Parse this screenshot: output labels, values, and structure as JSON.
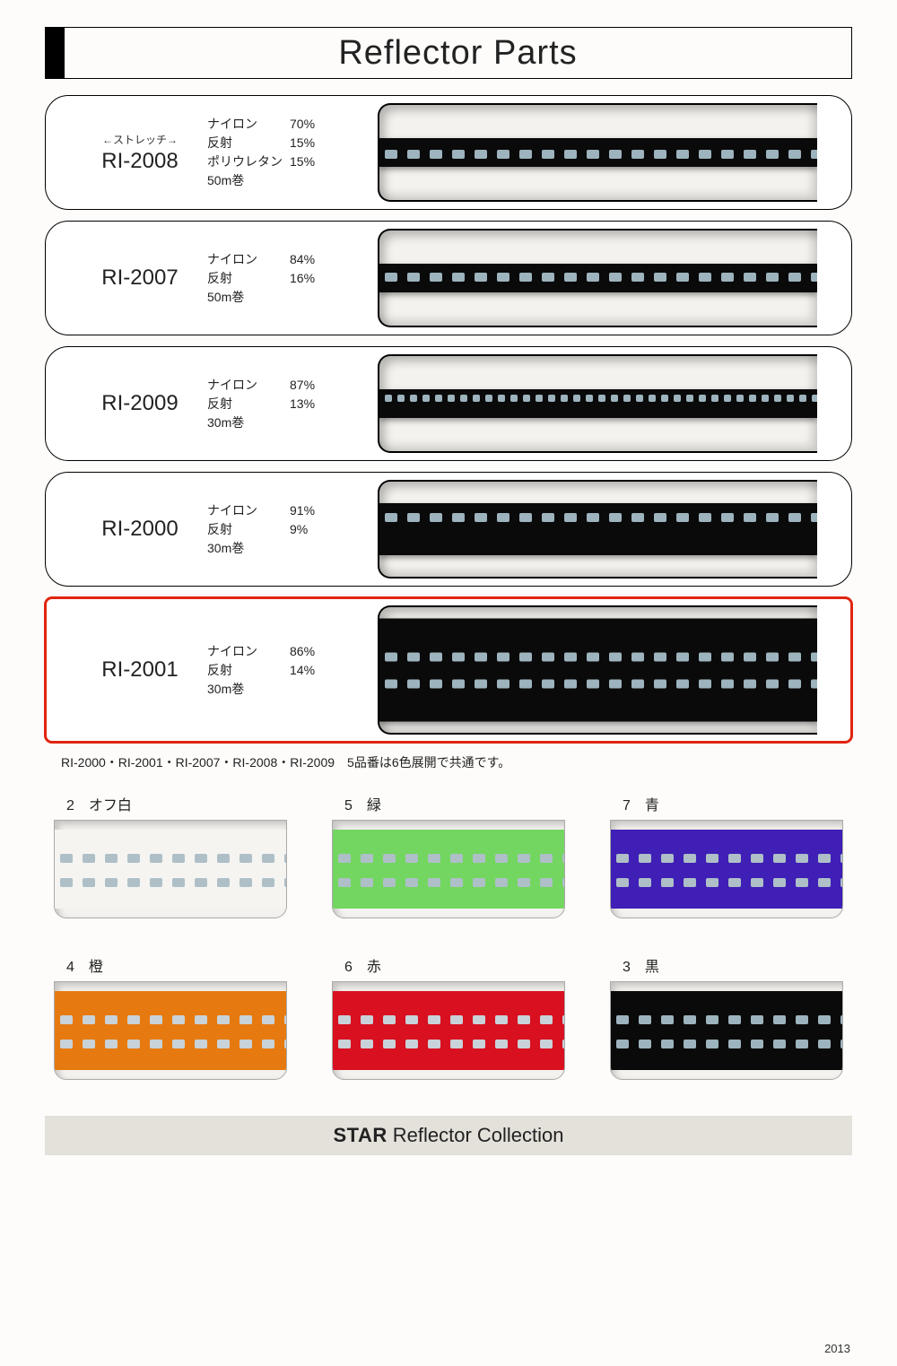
{
  "title": "Reflector Parts",
  "products": [
    {
      "code": "RI-2008",
      "stretch": "←ストレッチ→",
      "specs": [
        {
          "label": "ナイロン",
          "value": "70%"
        },
        {
          "label": "反射",
          "value": "15%"
        },
        {
          "label": "ポリウレタン",
          "value": "15%"
        },
        {
          "label": "50m巻",
          "value": ""
        }
      ],
      "tape_height": "thin",
      "tape_color": "#0a0a0a",
      "stitch_rows": [
        {
          "top": "38%",
          "fine": false
        }
      ],
      "highlighted": false
    },
    {
      "code": "RI-2007",
      "specs": [
        {
          "label": "ナイロン",
          "value": "84%"
        },
        {
          "label": "反射",
          "value": "16%"
        },
        {
          "label": "50m巻",
          "value": ""
        }
      ],
      "tape_height": "thin",
      "tape_color": "#0a0a0a",
      "stitch_rows": [
        {
          "top": "28%",
          "fine": false
        }
      ],
      "highlighted": false
    },
    {
      "code": "RI-2009",
      "specs": [
        {
          "label": "ナイロン",
          "value": "87%"
        },
        {
          "label": "反射",
          "value": "13%"
        },
        {
          "label": "30m巻",
          "value": ""
        }
      ],
      "tape_height": "thin",
      "tape_color": "#0a0a0a",
      "stitch_rows": [
        {
          "top": "14%",
          "fine": true
        }
      ],
      "highlighted": false
    },
    {
      "code": "RI-2000",
      "specs": [
        {
          "label": "ナイロン",
          "value": "91%"
        },
        {
          "label": "反射",
          "value": "9%"
        },
        {
          "label": "30m巻",
          "value": ""
        }
      ],
      "tape_height": "med",
      "tape_color": "#0a0a0a",
      "stitch_rows": [
        {
          "top": "18%",
          "fine": false
        }
      ],
      "highlighted": false
    },
    {
      "code": "RI-2001",
      "specs": [
        {
          "label": "ナイロン",
          "value": "86%"
        },
        {
          "label": "反射",
          "value": "14%"
        },
        {
          "label": "30m巻",
          "value": ""
        }
      ],
      "tape_height": "thick",
      "tape_color": "#0a0a0a",
      "stitch_rows": [
        {
          "top": "32%",
          "fine": false
        },
        {
          "top": "58%",
          "fine": false
        }
      ],
      "highlighted": true,
      "tall": true
    }
  ],
  "note": "RI-2000・RI-2001・RI-2007・RI-2008・RI-2009　5品番は6色展開で共通です。",
  "colors": [
    {
      "num": "2",
      "name": "オフ白",
      "hex": "#f5f4f0",
      "stitch": "#aebfc8"
    },
    {
      "num": "5",
      "name": "緑",
      "hex": "#73d660",
      "stitch": "#aebfc8"
    },
    {
      "num": "7",
      "name": "青",
      "hex": "#3f1fb5",
      "stitch": "#aebfc8"
    },
    {
      "num": "4",
      "name": "橙",
      "hex": "#e67a10",
      "stitch": "#c8d2d8"
    },
    {
      "num": "6",
      "name": "赤",
      "hex": "#d81020",
      "stitch": "#c8d2d8"
    },
    {
      "num": "3",
      "name": "黒",
      "hex": "#0a0a0a",
      "stitch": "#9db3bd"
    }
  ],
  "footer_brand": "STAR",
  "footer_text": "Reflector Collection",
  "year": "2013",
  "stitch_dot_color": "#9db3bd"
}
